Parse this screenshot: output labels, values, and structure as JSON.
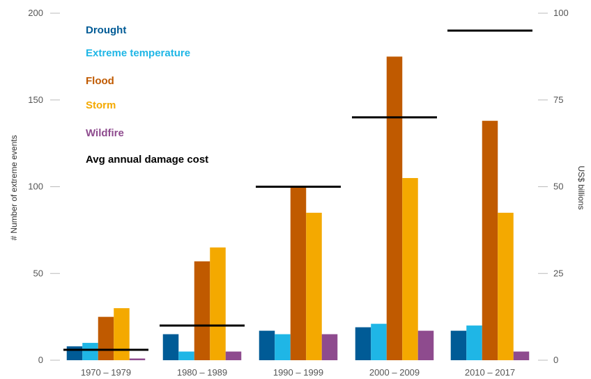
{
  "chart_data": {
    "type": "bar",
    "categories": [
      "1970 – 1979",
      "1980 – 1989",
      "1990 – 1999",
      "2000 – 2009",
      "2010 – 2017"
    ],
    "series": [
      {
        "name": "Drought",
        "color": "#005B96",
        "values": [
          8,
          15,
          17,
          19,
          17
        ]
      },
      {
        "name": "Extreme temperature",
        "color": "#1FB6E6",
        "values": [
          10,
          5,
          15,
          21,
          20
        ]
      },
      {
        "name": "Flood",
        "color": "#C05A00",
        "values": [
          25,
          57,
          100,
          175,
          138
        ]
      },
      {
        "name": "Storm",
        "color": "#F4A900",
        "values": [
          30,
          65,
          85,
          105,
          85
        ]
      },
      {
        "name": "Wildfire",
        "color": "#8E4B8E",
        "values": [
          1,
          5,
          15,
          17,
          5
        ]
      }
    ],
    "line_series": {
      "name": "Avg annual damage cost",
      "color": "#000000",
      "axis": "right",
      "values": [
        3,
        10,
        50,
        70,
        95
      ]
    },
    "ylabel_left": "# Number of extreme events",
    "ylabel_right": "US$ billions",
    "ylim_left": [
      0,
      200
    ],
    "ylim_right": [
      0,
      100
    ],
    "yticks_left": [
      "0",
      "50",
      "100",
      "150",
      "200"
    ],
    "yticks_right": [
      "0",
      "25",
      "50",
      "75",
      "100"
    ],
    "legend_position": "top-left",
    "grid": false
  }
}
